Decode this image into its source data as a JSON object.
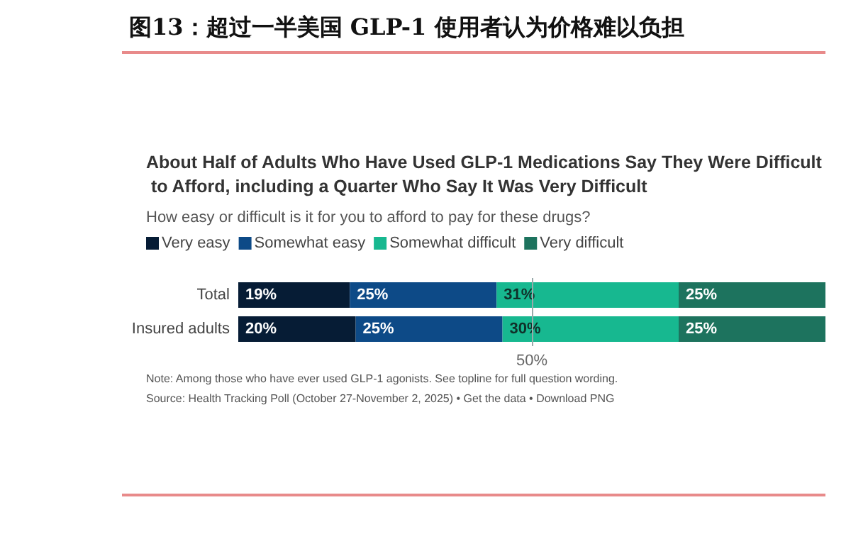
{
  "chart_data": {
    "type": "bar",
    "orientation": "horizontal",
    "stacked": true,
    "title": "图13：超过一半美国 GLP-1 使用者认为价格难以负担",
    "subtitle": "About Half of Adults Who Have Used GLP-1 Medications Say They Were Difficult to Afford, including a Quarter Who Say It Was Very Difficult",
    "annotations": [
      "How easy or difficult is it for you to afford to pay for these drugs?",
      "Note: Among those who have ever used GLP-1 agonists. See topline for full question wording.",
      "Source: Health Tracking Poll (October 27-November 2, 2025) • Get the data • Download PNG"
    ],
    "categories": [
      "Total",
      "Insured adults"
    ],
    "series": [
      {
        "name": "Very easy",
        "color": "#061c35",
        "values": [
          19,
          20
        ],
        "value_labels": [
          "19%",
          "20%"
        ]
      },
      {
        "name": "Somewhat easy",
        "color": "#0d4a87",
        "values": [
          25,
          25
        ],
        "value_labels": [
          "25%",
          "25%"
        ]
      },
      {
        "name": "Somewhat difficult",
        "color": "#17b890",
        "values": [
          31,
          30
        ],
        "value_labels": [
          "31%",
          "30%"
        ]
      },
      {
        "name": "Very difficult",
        "color": "#1d735e",
        "values": [
          25,
          25
        ],
        "value_labels": [
          "25%",
          "25%"
        ]
      }
    ],
    "ref_lines": [
      {
        "axis": "x",
        "value": 50,
        "label": "50%"
      }
    ],
    "tick_labels": "y",
    "grid": false,
    "legend": "top left"
  }
}
